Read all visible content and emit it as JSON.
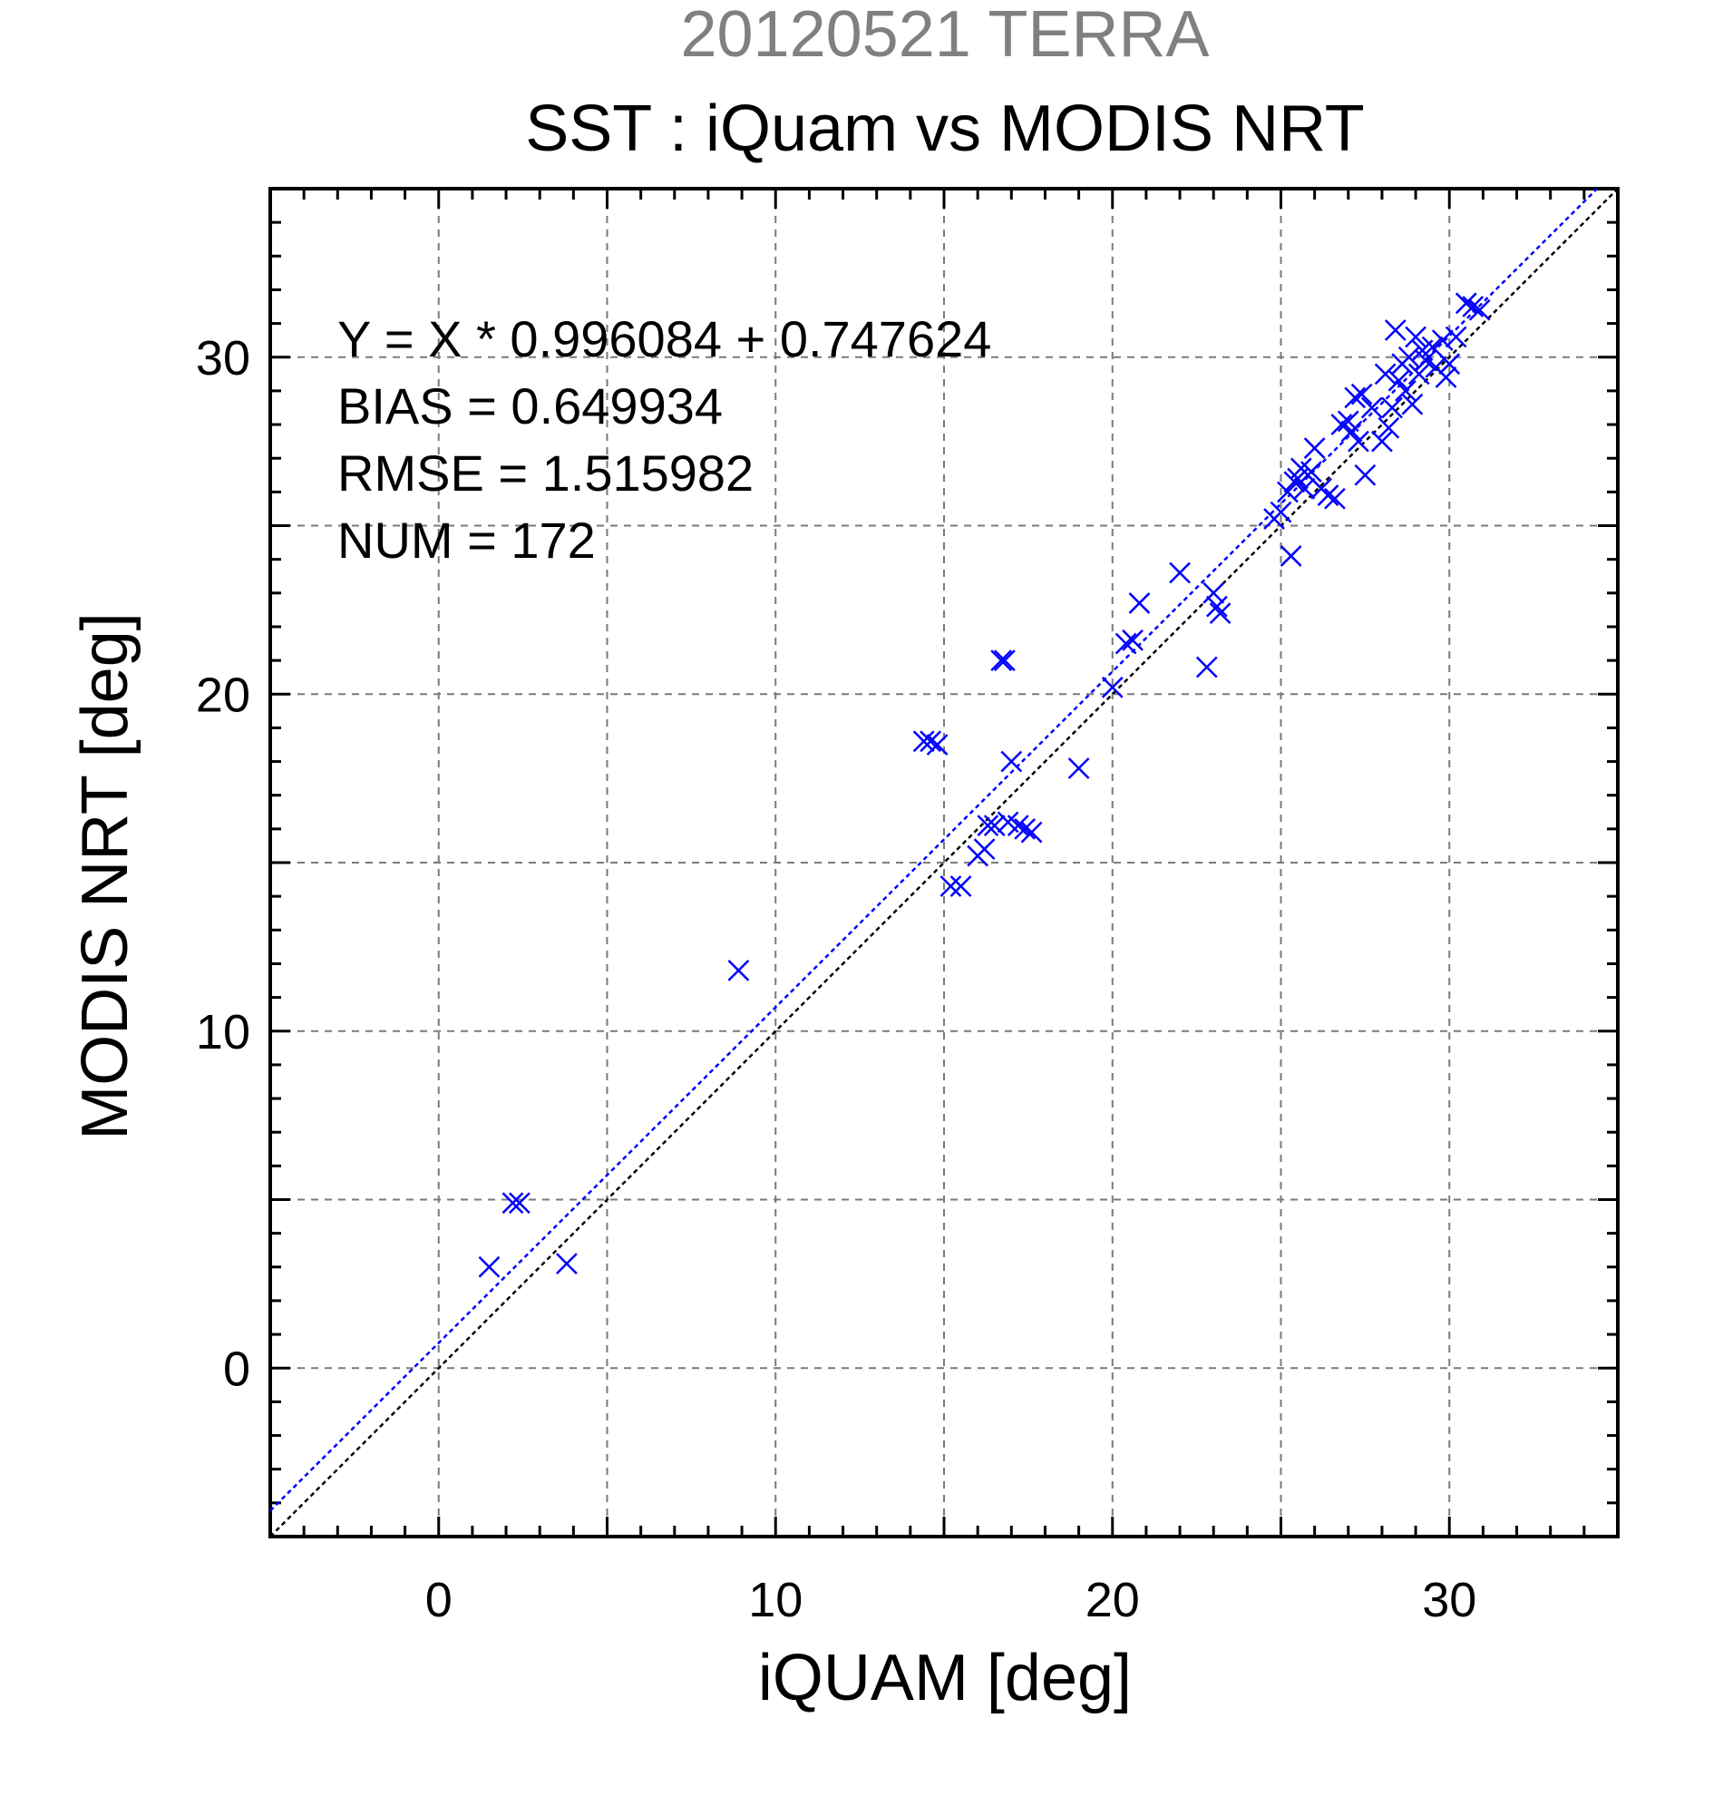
{
  "chart_data": {
    "type": "scatter",
    "title_top": "20120521 TERRA",
    "title": "SST : iQuam vs MODIS NRT",
    "xlabel": "iQUAM [deg]",
    "ylabel": "MODIS NRT [deg]",
    "xlim": [
      -5,
      35
    ],
    "ylim": [
      -5,
      35
    ],
    "x_ticks": [
      0,
      10,
      20,
      30
    ],
    "y_ticks": [
      0,
      10,
      20,
      30
    ],
    "x_tick_labels": [
      "0",
      "10",
      "20",
      "30"
    ],
    "y_tick_labels": [
      "0",
      "10",
      "20",
      "30"
    ],
    "grid": true,
    "grid_step": 5,
    "marker": "x",
    "marker_color": "#0000ff",
    "stats": {
      "equation": "Y = X * 0.996084 + 0.747624",
      "bias": "BIAS = 0.649934",
      "rmse": "RMSE = 1.515982",
      "num": "NUM = 172"
    },
    "lines": [
      {
        "kind": "one-to-one",
        "slope": 1.0,
        "intercept": 0.0,
        "color": "#000000"
      },
      {
        "kind": "regression",
        "slope": 0.996084,
        "intercept": 0.747624,
        "color": "#0000ff"
      }
    ],
    "points": [
      [
        1.5,
        3.0
      ],
      [
        2.2,
        4.9
      ],
      [
        2.4,
        4.9
      ],
      [
        3.8,
        3.1
      ],
      [
        8.9,
        11.8
      ],
      [
        14.4,
        18.6
      ],
      [
        14.6,
        18.6
      ],
      [
        14.8,
        18.5
      ],
      [
        15.2,
        14.3
      ],
      [
        15.5,
        14.3
      ],
      [
        16.0,
        15.2
      ],
      [
        16.2,
        15.4
      ],
      [
        16.3,
        16.1
      ],
      [
        16.5,
        16.1
      ],
      [
        16.7,
        21.0
      ],
      [
        16.8,
        21.0
      ],
      [
        16.9,
        16.2
      ],
      [
        17.0,
        18.0
      ],
      [
        17.2,
        16.1
      ],
      [
        17.4,
        16.0
      ],
      [
        17.6,
        15.9
      ],
      [
        19.0,
        17.8
      ],
      [
        20.0,
        20.2
      ],
      [
        20.4,
        21.5
      ],
      [
        20.6,
        21.6
      ],
      [
        20.8,
        22.7
      ],
      [
        22.0,
        23.6
      ],
      [
        22.8,
        20.8
      ],
      [
        23.0,
        23.0
      ],
      [
        23.1,
        22.6
      ],
      [
        23.2,
        22.4
      ],
      [
        24.8,
        25.2
      ],
      [
        25.0,
        25.4
      ],
      [
        25.2,
        26.0
      ],
      [
        25.3,
        24.1
      ],
      [
        25.4,
        26.3
      ],
      [
        25.5,
        26.4
      ],
      [
        25.6,
        26.7
      ],
      [
        25.7,
        26.1
      ],
      [
        25.8,
        26.5
      ],
      [
        25.9,
        26.6
      ],
      [
        26.0,
        27.3
      ],
      [
        26.2,
        26.1
      ],
      [
        26.4,
        25.9
      ],
      [
        26.6,
        25.8
      ],
      [
        26.8,
        28.0
      ],
      [
        27.0,
        28.1
      ],
      [
        27.1,
        27.8
      ],
      [
        27.2,
        28.8
      ],
      [
        27.3,
        27.5
      ],
      [
        27.4,
        28.9
      ],
      [
        27.5,
        26.5
      ],
      [
        27.7,
        28.5
      ],
      [
        28.0,
        27.5
      ],
      [
        28.1,
        29.5
      ],
      [
        28.2,
        27.9
      ],
      [
        28.3,
        28.5
      ],
      [
        28.4,
        30.8
      ],
      [
        28.5,
        29.3
      ],
      [
        28.6,
        29.8
      ],
      [
        28.7,
        29.0
      ],
      [
        28.8,
        30.0
      ],
      [
        28.9,
        28.6
      ],
      [
        29.0,
        30.6
      ],
      [
        29.1,
        29.5
      ],
      [
        29.2,
        30.2
      ],
      [
        29.3,
        29.9
      ],
      [
        29.5,
        30.3
      ],
      [
        29.6,
        29.7
      ],
      [
        29.8,
        30.5
      ],
      [
        29.9,
        29.4
      ],
      [
        30.0,
        29.8
      ],
      [
        30.2,
        30.6
      ],
      [
        30.5,
        31.6
      ],
      [
        30.7,
        31.5
      ],
      [
        30.9,
        31.4
      ]
    ]
  }
}
